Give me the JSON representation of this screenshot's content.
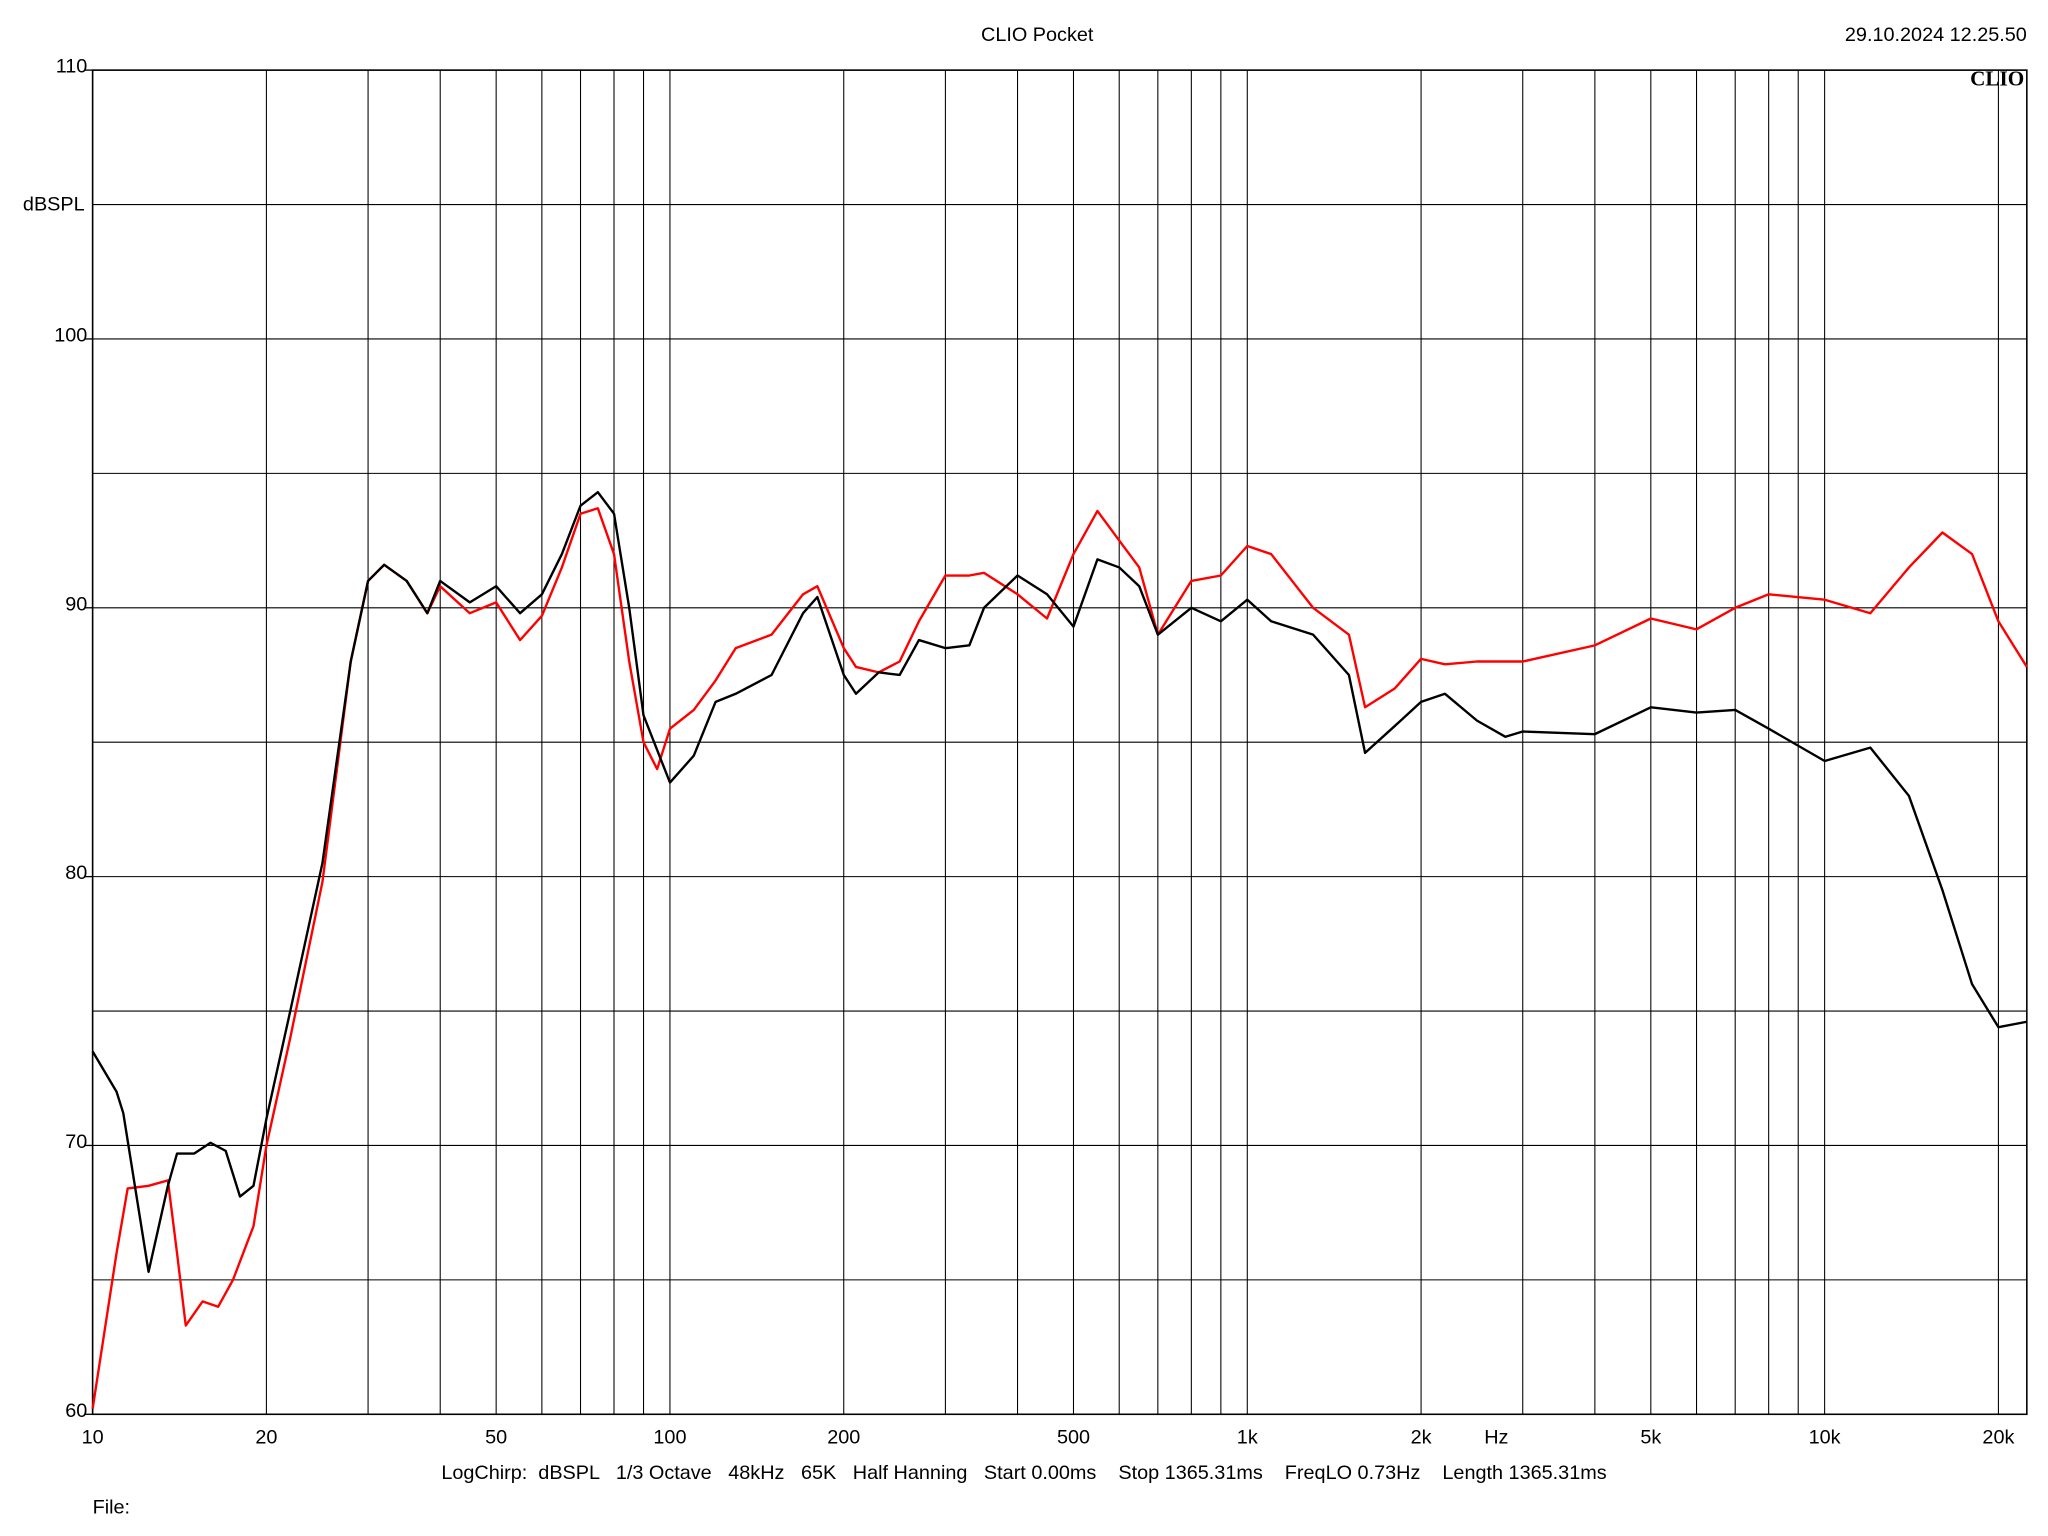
{
  "chart_data": {
    "type": "line",
    "title": "CLIO Pocket",
    "timestamp": "29.10.2024 12.25.50",
    "logo": "CLIO",
    "y_label": "dBSPL",
    "x_label": "Hz",
    "footer": "LogChirp:  dBSPL   1/3 Octave   48kHz   65K   Half Hanning   Start 0.00ms    Stop 1365.31ms    FreqLO 0.73Hz    Length 1365.31ms",
    "file_label": "File:",
    "log_x": true,
    "grid": true,
    "xlim": [
      10,
      22400
    ],
    "ylim": [
      60,
      110
    ],
    "yticks": [
      60,
      70,
      80,
      90,
      100,
      110
    ],
    "yminor": [
      65,
      75,
      85,
      95,
      105
    ],
    "xticks": [
      10,
      20,
      50,
      100,
      200,
      500,
      {
        "value": 1000,
        "label": "1k"
      },
      {
        "value": 2000,
        "label": "2k"
      },
      {
        "value": 5000,
        "label": "5k"
      },
      {
        "value": 10000,
        "label": "10k"
      },
      {
        "value": 20000,
        "label": "20k"
      }
    ],
    "xminor": [
      30,
      40,
      60,
      70,
      80,
      90,
      300,
      400,
      600,
      700,
      800,
      900,
      3000,
      4000,
      6000,
      7000,
      8000,
      9000
    ],
    "series": [
      {
        "color": "#000000",
        "x": [
          10,
          11,
          11.3,
          12.5,
          13.5,
          14,
          15,
          16,
          17,
          18,
          19,
          20,
          22,
          25,
          28,
          30,
          32,
          35,
          38,
          40,
          45,
          50,
          55,
          60,
          65,
          70,
          75,
          80,
          85,
          90,
          100,
          110,
          120,
          130,
          150,
          170,
          180,
          200,
          210,
          230,
          250,
          270,
          300,
          330,
          350,
          400,
          450,
          500,
          550,
          600,
          650,
          700,
          800,
          900,
          1000,
          1100,
          1300,
          1500,
          1600,
          1800,
          2000,
          2200,
          2500,
          2800,
          3000,
          4000,
          5000,
          6000,
          7000,
          8000,
          10000,
          12000,
          14000,
          16000,
          18000,
          20000,
          22400
        ],
        "values": [
          73.5,
          72,
          71.2,
          65.3,
          68.5,
          69.7,
          69.7,
          70.1,
          69.8,
          68.1,
          68.5,
          71,
          75,
          80.5,
          88,
          91,
          91.6,
          91,
          89.8,
          91,
          90.2,
          90.8,
          89.8,
          90.5,
          92,
          93.8,
          94.3,
          93.5,
          90,
          86,
          83.5,
          84.5,
          86.5,
          86.8,
          87.5,
          89.8,
          90.4,
          87.5,
          86.8,
          87.6,
          87.5,
          88.8,
          88.5,
          88.6,
          90,
          91.2,
          90.5,
          89.3,
          91.8,
          91.5,
          90.8,
          89,
          90,
          89.5,
          90.3,
          89.5,
          89,
          87.5,
          84.6,
          85.6,
          86.5,
          86.8,
          85.8,
          85.2,
          85.4,
          85.3,
          86.3,
          86.1,
          86.2,
          85.5,
          84.3,
          84.8,
          83,
          79.5,
          76,
          74.4,
          74.6
        ]
      },
      {
        "color": "#ff0000",
        "x": [
          10,
          11,
          11.5,
          12.5,
          13.5,
          14,
          14.5,
          15.5,
          16.5,
          17.5,
          19,
          20,
          22,
          25,
          28,
          30,
          32,
          35,
          38,
          40,
          45,
          50,
          55,
          60,
          65,
          70,
          75,
          80,
          85,
          90,
          95,
          100,
          110,
          120,
          130,
          150,
          170,
          180,
          200,
          210,
          230,
          250,
          270,
          300,
          330,
          350,
          400,
          450,
          500,
          550,
          600,
          650,
          700,
          800,
          900,
          1000,
          1100,
          1300,
          1500,
          1600,
          1800,
          2000,
          2200,
          2500,
          2800,
          3000,
          4000,
          5000,
          6000,
          7000,
          8000,
          10000,
          12000,
          14000,
          16000,
          18000,
          20000,
          22400
        ],
        "values": [
          60.2,
          66,
          68.4,
          68.5,
          68.7,
          66,
          63.3,
          64.2,
          64,
          65,
          67,
          70,
          74,
          79.8,
          88,
          91,
          91.6,
          91,
          89.8,
          90.8,
          89.8,
          90.2,
          88.8,
          89.7,
          91.5,
          93.5,
          93.7,
          92,
          88,
          85,
          84,
          85.5,
          86.2,
          87.3,
          88.5,
          89,
          90.5,
          90.8,
          88.5,
          87.8,
          87.6,
          88,
          89.5,
          91.2,
          91.2,
          91.3,
          90.5,
          89.6,
          92,
          93.6,
          92.5,
          91.5,
          89,
          91,
          91.2,
          92.3,
          92,
          90,
          89,
          86.3,
          87,
          88.1,
          87.9,
          88,
          88,
          88,
          88.6,
          89.6,
          89.2,
          90,
          90.5,
          90.3,
          89.8,
          91.5,
          92.8,
          92,
          89.5,
          87.8
        ]
      }
    ]
  }
}
